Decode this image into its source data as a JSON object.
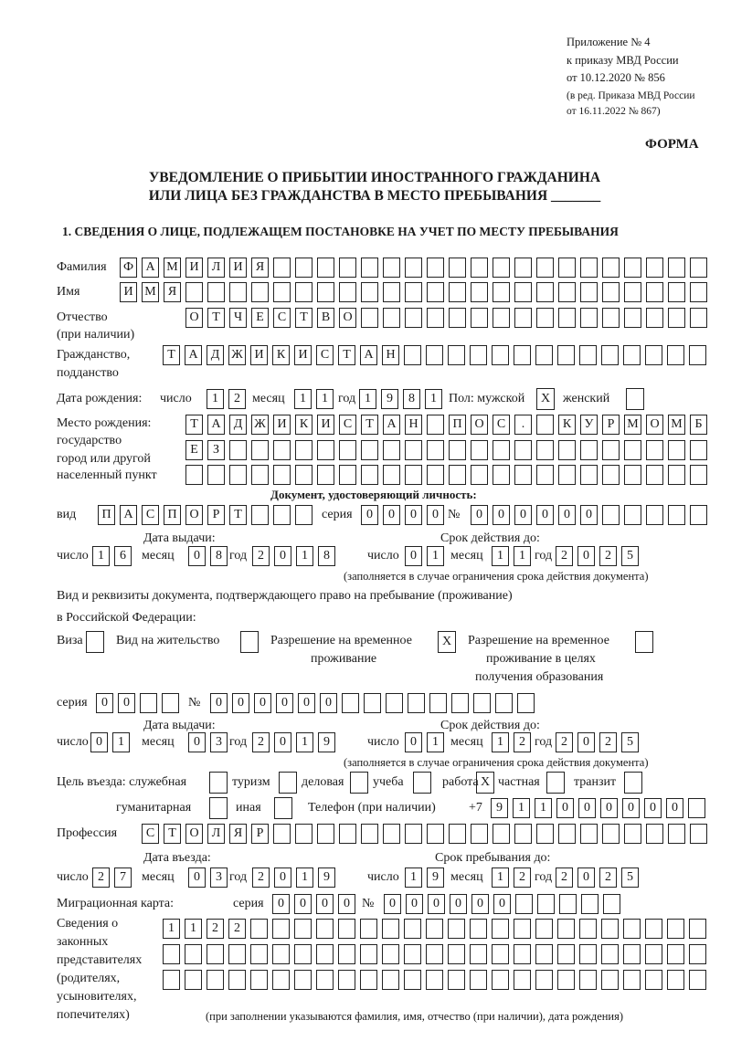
{
  "header": {
    "appendix": "Приложение № 4",
    "order": "к приказу МВД России",
    "order_date": "от 10.12.2020 № 856",
    "revision1": "(в ред. Приказа МВД России",
    "revision2": "от 16.11.2022 № 867)"
  },
  "form_label": "ФОРМА",
  "title_line1": "УВЕДОМЛЕНИЕ О ПРИБЫТИИ ИНОСТРАННОГО ГРАЖДАНИНА",
  "title_line2": "ИЛИ ЛИЦА БЕЗ ГРАЖДАНСТВА В МЕСТО ПРЕБЫВАНИЯ _______",
  "section1_heading": "1. СВЕДЕНИЯ О ЛИЦЕ, ПОДЛЕЖАЩЕМ ПОСТАНОВКЕ НА УЧЕТ ПО МЕСТУ ПРЕБЫВАНИЯ",
  "common": {
    "day": "число",
    "month": "месяц",
    "year": "год",
    "series": "серия",
    "number": "№"
  },
  "person": {
    "surname_label": "Фамилия",
    "surname": "ФАМИЛИЯ",
    "name_label": "Имя",
    "name": "ИМЯ",
    "patronymic_label": "Отчество",
    "patronymic_note": "(при наличии)",
    "patronymic": "ОТЧЕСТВО",
    "citizenship_label1": "Гражданство,",
    "citizenship_label2": "подданство",
    "citizenship": "ТАДЖИКИСТАН"
  },
  "birth": {
    "label": "Дата рождения:",
    "day": "12",
    "month": "11",
    "year": "1981",
    "sex_label": "Пол: мужской",
    "female_label": "женский",
    "male": "X",
    "female": ""
  },
  "birthplace": {
    "labels": [
      "Место рождения:",
      "государство",
      "город или другой",
      "населенный пункт"
    ],
    "rows": [
      "ТАДЖИКИСТАН ПОС. КУРМОМБ",
      "ЕЗ",
      ""
    ]
  },
  "id_doc": {
    "heading": "Документ, удостоверяющий личность:",
    "type_label": "вид",
    "type": "ПАСПОРТ",
    "series": "0000",
    "number": "000000",
    "issue_label": "Дата выдачи:",
    "valid_label": "Срок действия до:",
    "issue": {
      "day": "16",
      "month": "08",
      "year": "2018"
    },
    "valid": {
      "day": "01",
      "month": "11",
      "year": "2025"
    },
    "note": "(заполняется в случае ограничения срока действия документа)"
  },
  "stay_doc": {
    "intro1": "Вид и реквизиты документа, подтверждающего право на пребывание (проживание)",
    "intro2": "в Российской Федерации:",
    "visa_label": "Виза",
    "visa": "",
    "residence_label": "Вид на жительство",
    "residence": "",
    "temp_label1": "Разрешение на временное",
    "temp_label2": "проживание",
    "temp": "X",
    "temp_edu_label1": "Разрешение на временное",
    "temp_edu_label2": "проживание в целях",
    "temp_edu_label3": "получения образования",
    "temp_edu": "",
    "series": "00",
    "number": "000000",
    "issue_label": "Дата выдачи:",
    "valid_label": "Срок действия до:",
    "issue": {
      "day": "01",
      "month": "03",
      "year": "2019"
    },
    "valid": {
      "day": "01",
      "month": "12",
      "year": "2025"
    },
    "note": "(заполняется в случае ограничения срока действия документа)"
  },
  "purpose": {
    "label": "Цель въезда: служебная",
    "service": "",
    "tourism_label": "туризм",
    "tourism": "",
    "business_label": "деловая",
    "business": "",
    "study_label": "учеба",
    "study": "",
    "work_label": "работа",
    "work": "X",
    "private_label": "частная",
    "private": "",
    "transit_label": "транзит",
    "transit": "",
    "humanitarian_label": "гуманитарная",
    "humanitarian": "",
    "other_label": "иная",
    "other": ""
  },
  "phone": {
    "label": "Телефон (при наличии)",
    "prefix": "+7",
    "value": "911000000"
  },
  "profession": {
    "label": "Профессия",
    "value": "СТОЛЯР"
  },
  "entry": {
    "entry_label": "Дата въезда:",
    "until_label": "Срок пребывания до:",
    "entry": {
      "day": "27",
      "month": "03",
      "year": "2019"
    },
    "until": {
      "day": "19",
      "month": "12",
      "year": "2025"
    }
  },
  "migration_card": {
    "label": "Миграционная карта:",
    "series": "0000",
    "number": "000000"
  },
  "representatives": {
    "labels": [
      "Сведения о",
      "законных",
      "представителях",
      "(родителях,",
      "усыновителях,",
      "попечителях)"
    ],
    "rows": [
      "1122",
      "",
      ""
    ],
    "note": "(при заполнении указываются фамилия, имя, отчество (при наличии), дата рождения)"
  }
}
